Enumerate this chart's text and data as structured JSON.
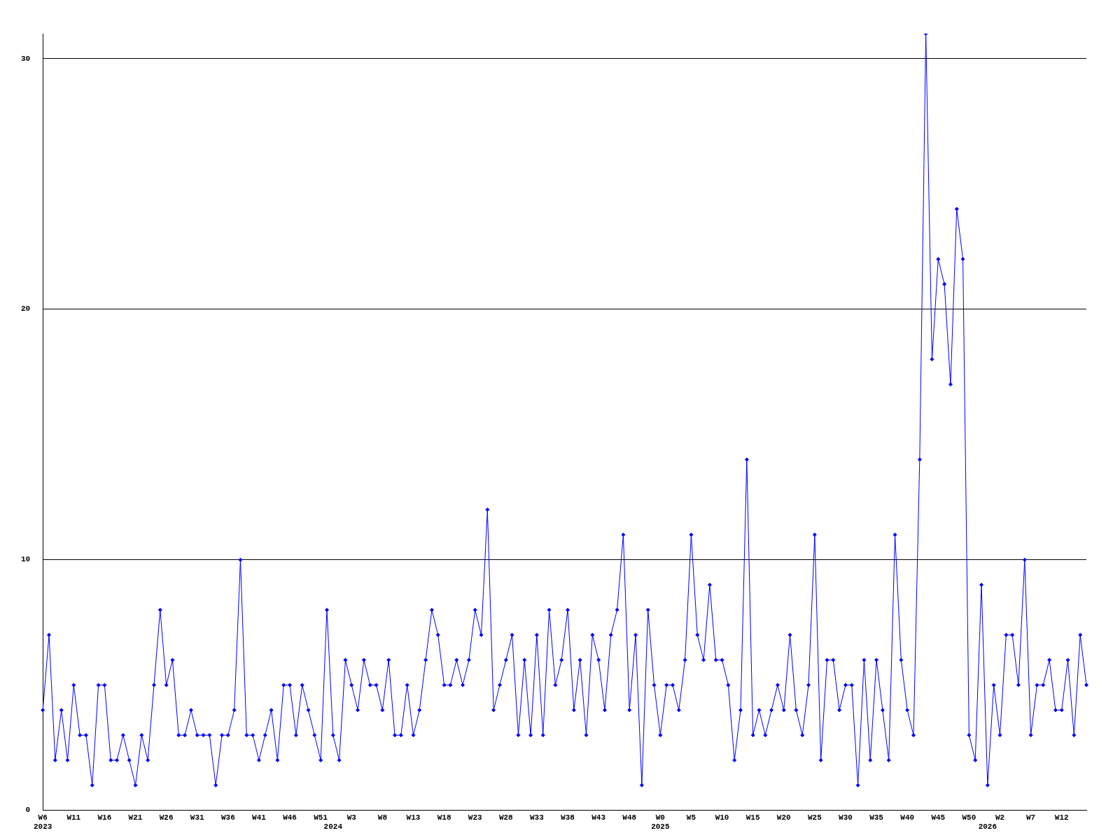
{
  "chart_data": {
    "type": "line",
    "categories": [
      "W6\n2023",
      null,
      null,
      null,
      null,
      "W11",
      null,
      null,
      null,
      null,
      "W16",
      null,
      null,
      null,
      null,
      "W21",
      null,
      null,
      null,
      null,
      "W26",
      null,
      null,
      null,
      null,
      "W31",
      null,
      null,
      null,
      null,
      "W36",
      null,
      null,
      null,
      null,
      "W41",
      null,
      null,
      null,
      null,
      "W46",
      null,
      null,
      null,
      null,
      "W51",
      null,
      "\n2024",
      null,
      null,
      "W3",
      null,
      null,
      null,
      null,
      "W8",
      null,
      null,
      null,
      null,
      "W13",
      null,
      null,
      null,
      null,
      "W18",
      null,
      null,
      null,
      null,
      "W23",
      null,
      null,
      null,
      null,
      "W28",
      null,
      null,
      null,
      null,
      "W33",
      null,
      null,
      null,
      null,
      "W38",
      null,
      null,
      null,
      null,
      "W43",
      null,
      null,
      null,
      null,
      "W48",
      null,
      null,
      null,
      null,
      "W0\n2025",
      null,
      null,
      null,
      null,
      "W5",
      null,
      null,
      null,
      null,
      "W10",
      null,
      null,
      null,
      null,
      "W15",
      null,
      null,
      null,
      null,
      "W20",
      null,
      null,
      null,
      null,
      "W25",
      null,
      null,
      null,
      null,
      "W30",
      null,
      null,
      null,
      null,
      "W35",
      null,
      null,
      null,
      null,
      "W40",
      null,
      null,
      null,
      null,
      "W45",
      null,
      null,
      null,
      null,
      "W50",
      null,
      null,
      "\n2026",
      null,
      "W2",
      null,
      null,
      null,
      null,
      "W7",
      null,
      null,
      null,
      null,
      "W12",
      null,
      null,
      null,
      null
    ],
    "series": [
      {
        "color": "#0000ff",
        "values": [
          4,
          7,
          2,
          4,
          2,
          5,
          3,
          3,
          1,
          5,
          5,
          2,
          2,
          3,
          2,
          1,
          3,
          2,
          5,
          8,
          5,
          6,
          3,
          3,
          4,
          3,
          3,
          3,
          1,
          3,
          3,
          4,
          10,
          3,
          3,
          2,
          3,
          4,
          2,
          5,
          5,
          3,
          5,
          4,
          3,
          2,
          8,
          3,
          2,
          6,
          5,
          4,
          6,
          5,
          5,
          4,
          6,
          3,
          3,
          5,
          3,
          4,
          6,
          8,
          7,
          5,
          5,
          6,
          5,
          6,
          8,
          7,
          12,
          4,
          5,
          6,
          7,
          3,
          6,
          3,
          7,
          3,
          8,
          5,
          6,
          8,
          4,
          6,
          3,
          7,
          6,
          4,
          7,
          8,
          11,
          4,
          7,
          1,
          8,
          5,
          3,
          5,
          5,
          4,
          6,
          11,
          7,
          6,
          9,
          6,
          6,
          5,
          2,
          4,
          14,
          3,
          4,
          3,
          4,
          5,
          4,
          7,
          4,
          3,
          5,
          11,
          2,
          6,
          6,
          4,
          5,
          5,
          1,
          6,
          2,
          6,
          4,
          2,
          11,
          6,
          4,
          3,
          14,
          31,
          18,
          22,
          21,
          17,
          24,
          22,
          3,
          2,
          9,
          1,
          5,
          3,
          7,
          7,
          5,
          10,
          3,
          5,
          5,
          6,
          4,
          4,
          6,
          3,
          7,
          5
        ]
      }
    ],
    "ylim": [
      0,
      31
    ],
    "yticks": [
      0,
      10,
      20,
      30
    ],
    "grid": "y",
    "marker": "diamond",
    "line_style": "solid"
  }
}
